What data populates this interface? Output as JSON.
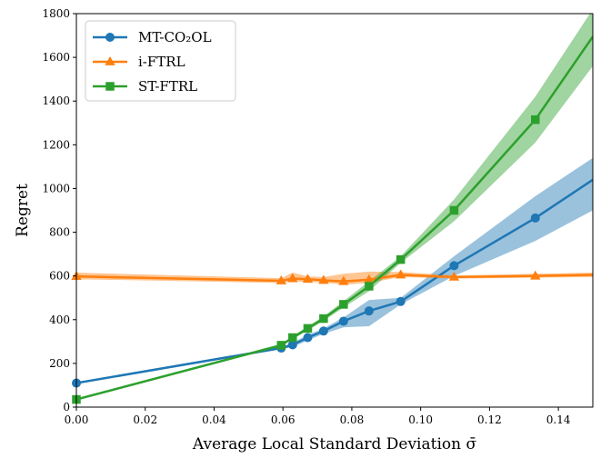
{
  "chart_data": {
    "type": "line",
    "title": "",
    "xlabel": "Average Local Standard Deviation σ̄",
    "ylabel": "Regret",
    "xlim": [
      0,
      0.15
    ],
    "ylim": [
      0,
      1800
    ],
    "grid": false,
    "legend_position": "top-left",
    "x_ticks": [
      0,
      0.02,
      0.04,
      0.06,
      0.08,
      0.1,
      0.12,
      0.14
    ],
    "x_tick_labels": [
      "0.00",
      "0.02",
      "0.04",
      "0.06",
      "0.08",
      "0.10",
      "0.12",
      "0.14"
    ],
    "y_ticks": [
      0,
      200,
      400,
      600,
      800,
      1000,
      1200,
      1400,
      1600,
      1800
    ],
    "y_tick_labels": [
      "0",
      "200",
      "400",
      "600",
      "800",
      "1000",
      "1200",
      "1400",
      "1600",
      "1800"
    ],
    "series": [
      {
        "name": "MT-CO₂OL",
        "color": "#1f77b4",
        "marker": "circle",
        "x": [
          0.0,
          0.0595,
          0.0628,
          0.0672,
          0.0718,
          0.0776,
          0.085,
          0.0942,
          0.1097,
          0.1333,
          0.15
        ],
        "values": [
          110,
          270,
          285,
          318,
          348,
          393,
          440,
          483,
          647,
          865,
          1040
        ],
        "band_low": [
          110,
          265,
          275,
          305,
          335,
          365,
          370,
          470,
          600,
          760,
          900
        ],
        "band_high": [
          110,
          275,
          295,
          330,
          360,
          410,
          490,
          500,
          690,
          965,
          1140
        ],
        "x_end_marker": 0.1333
      },
      {
        "name": "i-FTRL",
        "color": "#ff7f0e",
        "marker": "triangle",
        "x": [
          0.0,
          0.0595,
          0.0628,
          0.0672,
          0.0718,
          0.0776,
          0.085,
          0.0942,
          0.1097,
          0.1333,
          0.15
        ],
        "values": [
          598,
          578,
          588,
          585,
          580,
          575,
          583,
          605,
          595,
          600,
          605
        ],
        "band_low": [
          585,
          568,
          575,
          572,
          570,
          560,
          568,
          595,
          588,
          592,
          595
        ],
        "band_high": [
          615,
          590,
          615,
          598,
          595,
          610,
          620,
          618,
          602,
          610,
          615
        ],
        "x_end_marker": 0.1333
      },
      {
        "name": "ST-FTRL",
        "color": "#2ca02c",
        "marker": "square",
        "x": [
          0.0,
          0.0595,
          0.0628,
          0.0672,
          0.0718,
          0.0776,
          0.085,
          0.0942,
          0.1097,
          0.1333,
          0.15
        ],
        "values": [
          35,
          283,
          318,
          360,
          405,
          470,
          553,
          675,
          900,
          1315,
          1695
        ],
        "band_low": [
          35,
          278,
          310,
          350,
          395,
          455,
          530,
          660,
          850,
          1210,
          1560
        ],
        "band_high": [
          35,
          290,
          325,
          370,
          415,
          485,
          575,
          690,
          950,
          1420,
          1820
        ],
        "x_end_marker": 0.1333
      }
    ]
  }
}
